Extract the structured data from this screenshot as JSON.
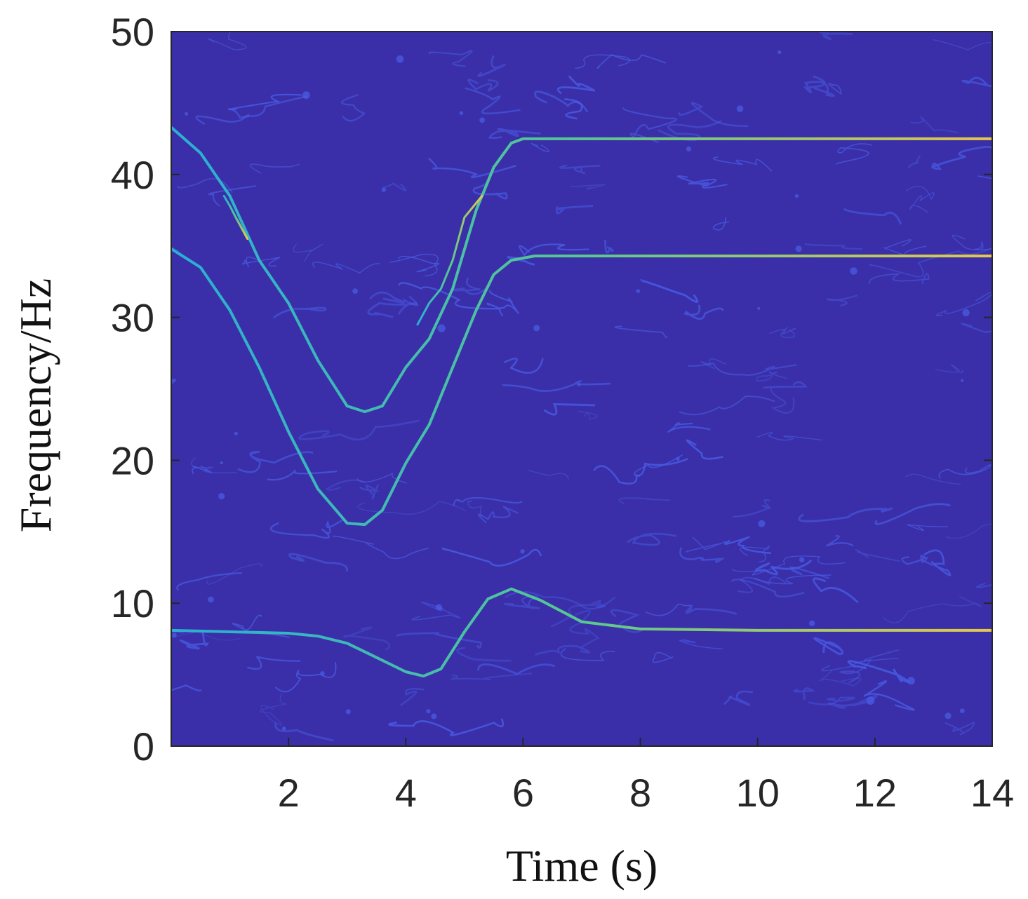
{
  "chart_data": {
    "type": "heatmap",
    "title": "",
    "xlabel": "Time (s)",
    "ylabel": "Frequency/Hz",
    "xlim": [
      0,
      14
    ],
    "ylim": [
      0,
      50
    ],
    "xticks": [
      "2",
      "4",
      "6",
      "8",
      "10",
      "12",
      "14"
    ],
    "yticks": [
      "0",
      "10",
      "20",
      "30",
      "40",
      "50"
    ],
    "grid": false,
    "colormap": "parula",
    "colors": {
      "background": "#3a2fa8",
      "noise": "#4a5ee8",
      "ridge_low": "#2aaed4",
      "ridge_mid": "#58c890",
      "ridge_high": "#e6c84a"
    },
    "ridges": [
      {
        "x": [
          0,
          0.5,
          1.0,
          1.5,
          2.0,
          2.5,
          3.0,
          3.3,
          3.6,
          4.0,
          4.4,
          4.8,
          5.2,
          5.5,
          5.8,
          6.0,
          14.0
        ],
        "y": [
          43.3,
          41.5,
          38.5,
          34.0,
          31.0,
          27.0,
          23.8,
          23.4,
          23.8,
          26.5,
          28.5,
          32.0,
          37.5,
          40.5,
          42.2,
          42.5,
          42.5
        ]
      },
      {
        "x": [
          0,
          0.5,
          1.0,
          1.5,
          2.0,
          2.5,
          3.0,
          3.3,
          3.6,
          4.0,
          4.4,
          4.8,
          5.2,
          5.5,
          5.8,
          6.2,
          14.0
        ],
        "y": [
          34.8,
          33.5,
          30.5,
          26.5,
          22.0,
          18.0,
          15.6,
          15.5,
          16.5,
          19.8,
          22.5,
          26.5,
          30.5,
          33.0,
          34.0,
          34.3,
          34.3
        ]
      },
      {
        "x": [
          0,
          1.0,
          2.0,
          2.5,
          3.0,
          3.5,
          4.0,
          4.3,
          4.6,
          5.0,
          5.4,
          5.8,
          6.3,
          7.0,
          8.0,
          10.0,
          14.0
        ],
        "y": [
          8.1,
          8.0,
          7.9,
          7.7,
          7.2,
          6.2,
          5.2,
          4.9,
          5.4,
          8.0,
          10.3,
          11.0,
          10.2,
          8.7,
          8.2,
          8.1,
          8.1
        ]
      },
      {
        "x": [
          0.9,
          1.0,
          1.1,
          1.3
        ],
        "y": [
          38.5,
          37.8,
          37.0,
          35.5
        ]
      },
      {
        "x": [
          4.2,
          4.4,
          4.6,
          4.8,
          5.0,
          5.3
        ],
        "y": [
          29.5,
          31.0,
          32.0,
          34.0,
          37.0,
          38.5
        ]
      }
    ]
  }
}
